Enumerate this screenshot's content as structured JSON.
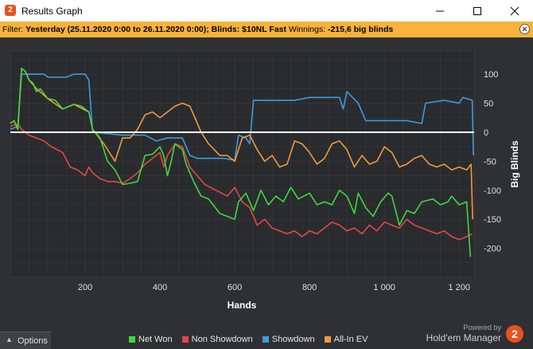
{
  "window": {
    "title": "Results Graph",
    "icon": "hm2-app-icon"
  },
  "filter": {
    "label": "Filter:",
    "value": "Yesterday (25.11.2020 0:00 to 26.11.2020 0:00); Blinds: $10NL Fast",
    "winnings_label": "Winnings:",
    "winnings_value": "-215,6 big blinds"
  },
  "bottom": {
    "options_label": "Options",
    "powered_by": "Powered by",
    "brand": "Hold'em Manager",
    "brand_logo": "2"
  },
  "colors": {
    "net_won": "#3fd83f",
    "non_showdown": "#e04848",
    "showdown": "#3d9be0",
    "all_in_ev": "#f09a3a",
    "background": "#2f3033",
    "filter_bar": "#f7b23b"
  },
  "chart_data": {
    "type": "line",
    "xlabel": "Hands",
    "ylabel": "Big Blinds",
    "xlim": [
      0,
      1240
    ],
    "ylim": [
      -250,
      140
    ],
    "xticks": [
      200,
      400,
      600,
      800,
      1000,
      1200
    ],
    "xtick_labels": [
      "200",
      "400",
      "600",
      "800",
      "1 000",
      "1 200"
    ],
    "yticks": [
      100,
      50,
      0,
      -50,
      -100,
      -150,
      -200
    ],
    "ytick_labels": [
      "100",
      "50",
      "0",
      "-50",
      "-100",
      "-150",
      "-200"
    ],
    "grid": true,
    "legend_position": "bottom",
    "series": [
      {
        "name": "Net Won",
        "color": "#3fd83f",
        "points": [
          [
            0,
            15
          ],
          [
            10,
            20
          ],
          [
            20,
            5
          ],
          [
            30,
            110
          ],
          [
            40,
            105
          ],
          [
            50,
            90
          ],
          [
            60,
            85
          ],
          [
            70,
            70
          ],
          [
            80,
            75
          ],
          [
            100,
            58
          ],
          [
            120,
            55
          ],
          [
            140,
            40
          ],
          [
            170,
            48
          ],
          [
            190,
            45
          ],
          [
            210,
            35
          ],
          [
            220,
            5
          ],
          [
            240,
            -10
          ],
          [
            260,
            -50
          ],
          [
            280,
            -65
          ],
          [
            300,
            -90
          ],
          [
            320,
            -88
          ],
          [
            340,
            -85
          ],
          [
            360,
            -40
          ],
          [
            380,
            -38
          ],
          [
            400,
            -25
          ],
          [
            410,
            -40
          ],
          [
            420,
            -75
          ],
          [
            430,
            -50
          ],
          [
            440,
            -20
          ],
          [
            460,
            -30
          ],
          [
            470,
            -55
          ],
          [
            490,
            -85
          ],
          [
            510,
            -110
          ],
          [
            530,
            -115
          ],
          [
            560,
            -140
          ],
          [
            580,
            -145
          ],
          [
            600,
            -150
          ],
          [
            610,
            -120
          ],
          [
            630,
            -105
          ],
          [
            650,
            -135
          ],
          [
            670,
            -100
          ],
          [
            690,
            -125
          ],
          [
            710,
            -110
          ],
          [
            730,
            -120
          ],
          [
            750,
            -95
          ],
          [
            770,
            -115
          ],
          [
            800,
            -105
          ],
          [
            820,
            -125
          ],
          [
            840,
            -120
          ],
          [
            860,
            -125
          ],
          [
            880,
            -100
          ],
          [
            900,
            -110
          ],
          [
            920,
            -140
          ],
          [
            930,
            -105
          ],
          [
            950,
            -130
          ],
          [
            970,
            -145
          ],
          [
            990,
            -120
          ],
          [
            1010,
            -105
          ],
          [
            1020,
            -110
          ],
          [
            1040,
            -160
          ],
          [
            1060,
            -135
          ],
          [
            1080,
            -140
          ],
          [
            1100,
            -120
          ],
          [
            1130,
            -115
          ],
          [
            1150,
            -125
          ],
          [
            1170,
            -120
          ],
          [
            1180,
            -110
          ],
          [
            1200,
            -125
          ],
          [
            1220,
            -120
          ],
          [
            1230,
            -215
          ]
        ]
      },
      {
        "name": "Non Showdown",
        "color": "#e04848",
        "points": [
          [
            0,
            10
          ],
          [
            20,
            15
          ],
          [
            30,
            5
          ],
          [
            50,
            -5
          ],
          [
            70,
            -10
          ],
          [
            90,
            -15
          ],
          [
            110,
            -25
          ],
          [
            140,
            -35
          ],
          [
            160,
            -60
          ],
          [
            180,
            -65
          ],
          [
            200,
            -75
          ],
          [
            210,
            -60
          ],
          [
            220,
            -70
          ],
          [
            240,
            -80
          ],
          [
            260,
            -85
          ],
          [
            280,
            -85
          ],
          [
            300,
            -88
          ],
          [
            320,
            -80
          ],
          [
            340,
            -70
          ],
          [
            360,
            -55
          ],
          [
            380,
            -45
          ],
          [
            400,
            -35
          ],
          [
            410,
            -60
          ],
          [
            420,
            -40
          ],
          [
            440,
            -20
          ],
          [
            460,
            -25
          ],
          [
            480,
            -60
          ],
          [
            500,
            -75
          ],
          [
            520,
            -90
          ],
          [
            550,
            -100
          ],
          [
            580,
            -110
          ],
          [
            600,
            -95
          ],
          [
            620,
            -120
          ],
          [
            640,
            -130
          ],
          [
            660,
            -160
          ],
          [
            680,
            -150
          ],
          [
            700,
            -165
          ],
          [
            720,
            -170
          ],
          [
            740,
            -175
          ],
          [
            760,
            -170
          ],
          [
            780,
            -180
          ],
          [
            800,
            -170
          ],
          [
            820,
            -175
          ],
          [
            840,
            -165
          ],
          [
            860,
            -155
          ],
          [
            880,
            -160
          ],
          [
            900,
            -170
          ],
          [
            920,
            -165
          ],
          [
            940,
            -175
          ],
          [
            960,
            -160
          ],
          [
            980,
            -170
          ],
          [
            1000,
            -155
          ],
          [
            1020,
            -160
          ],
          [
            1040,
            -165
          ],
          [
            1060,
            -150
          ],
          [
            1080,
            -160
          ],
          [
            1100,
            -165
          ],
          [
            1120,
            -170
          ],
          [
            1140,
            -175
          ],
          [
            1160,
            -170
          ],
          [
            1180,
            -180
          ],
          [
            1200,
            -185
          ],
          [
            1220,
            -180
          ],
          [
            1235,
            -175
          ]
        ]
      },
      {
        "name": "Showdown",
        "color": "#3d9be0",
        "points": [
          [
            0,
            5
          ],
          [
            20,
            10
          ],
          [
            30,
            100
          ],
          [
            60,
            100
          ],
          [
            90,
            100
          ],
          [
            100,
            95
          ],
          [
            120,
            95
          ],
          [
            150,
            95
          ],
          [
            170,
            100
          ],
          [
            200,
            100
          ],
          [
            210,
            90
          ],
          [
            220,
            0
          ],
          [
            300,
            -5
          ],
          [
            320,
            -5
          ],
          [
            360,
            -5
          ],
          [
            390,
            -15
          ],
          [
            420,
            -10
          ],
          [
            460,
            -10
          ],
          [
            480,
            -40
          ],
          [
            500,
            -45
          ],
          [
            540,
            -45
          ],
          [
            570,
            -45
          ],
          [
            600,
            -48
          ],
          [
            610,
            -5
          ],
          [
            630,
            -10
          ],
          [
            640,
            -20
          ],
          [
            650,
            55
          ],
          [
            700,
            55
          ],
          [
            720,
            55
          ],
          [
            760,
            55
          ],
          [
            800,
            60
          ],
          [
            880,
            60
          ],
          [
            890,
            40
          ],
          [
            900,
            70
          ],
          [
            930,
            50
          ],
          [
            950,
            20
          ],
          [
            1000,
            20
          ],
          [
            1040,
            20
          ],
          [
            1060,
            20
          ],
          [
            1100,
            15
          ],
          [
            1110,
            50
          ],
          [
            1160,
            55
          ],
          [
            1200,
            50
          ],
          [
            1210,
            60
          ],
          [
            1235,
            55
          ],
          [
            1238,
            -40
          ]
        ]
      },
      {
        "name": "All-In EV",
        "color": "#f09a3a",
        "points": [
          [
            0,
            15
          ],
          [
            10,
            20
          ],
          [
            20,
            5
          ],
          [
            30,
            110
          ],
          [
            40,
            105
          ],
          [
            50,
            90
          ],
          [
            70,
            75
          ],
          [
            100,
            58
          ],
          [
            140,
            40
          ],
          [
            170,
            48
          ],
          [
            210,
            35
          ],
          [
            220,
            5
          ],
          [
            250,
            -20
          ],
          [
            280,
            -50
          ],
          [
            300,
            -10
          ],
          [
            320,
            -10
          ],
          [
            340,
            5
          ],
          [
            360,
            30
          ],
          [
            380,
            35
          ],
          [
            400,
            25
          ],
          [
            420,
            35
          ],
          [
            440,
            45
          ],
          [
            460,
            50
          ],
          [
            480,
            45
          ],
          [
            500,
            15
          ],
          [
            510,
            0
          ],
          [
            530,
            -20
          ],
          [
            560,
            -40
          ],
          [
            580,
            -40
          ],
          [
            600,
            -50
          ],
          [
            620,
            -10
          ],
          [
            640,
            -5
          ],
          [
            660,
            -30
          ],
          [
            680,
            -50
          ],
          [
            700,
            -40
          ],
          [
            720,
            -60
          ],
          [
            740,
            -55
          ],
          [
            760,
            -15
          ],
          [
            780,
            -20
          ],
          [
            800,
            -35
          ],
          [
            820,
            -55
          ],
          [
            840,
            -45
          ],
          [
            860,
            -20
          ],
          [
            880,
            -15
          ],
          [
            900,
            -30
          ],
          [
            920,
            -60
          ],
          [
            940,
            -40
          ],
          [
            960,
            -55
          ],
          [
            980,
            -50
          ],
          [
            1000,
            -25
          ],
          [
            1020,
            -35
          ],
          [
            1040,
            -60
          ],
          [
            1060,
            -55
          ],
          [
            1080,
            -45
          ],
          [
            1100,
            -40
          ],
          [
            1120,
            -55
          ],
          [
            1140,
            -60
          ],
          [
            1160,
            -55
          ],
          [
            1180,
            -65
          ],
          [
            1200,
            -60
          ],
          [
            1220,
            -65
          ],
          [
            1232,
            -55
          ],
          [
            1236,
            -150
          ]
        ]
      }
    ]
  }
}
